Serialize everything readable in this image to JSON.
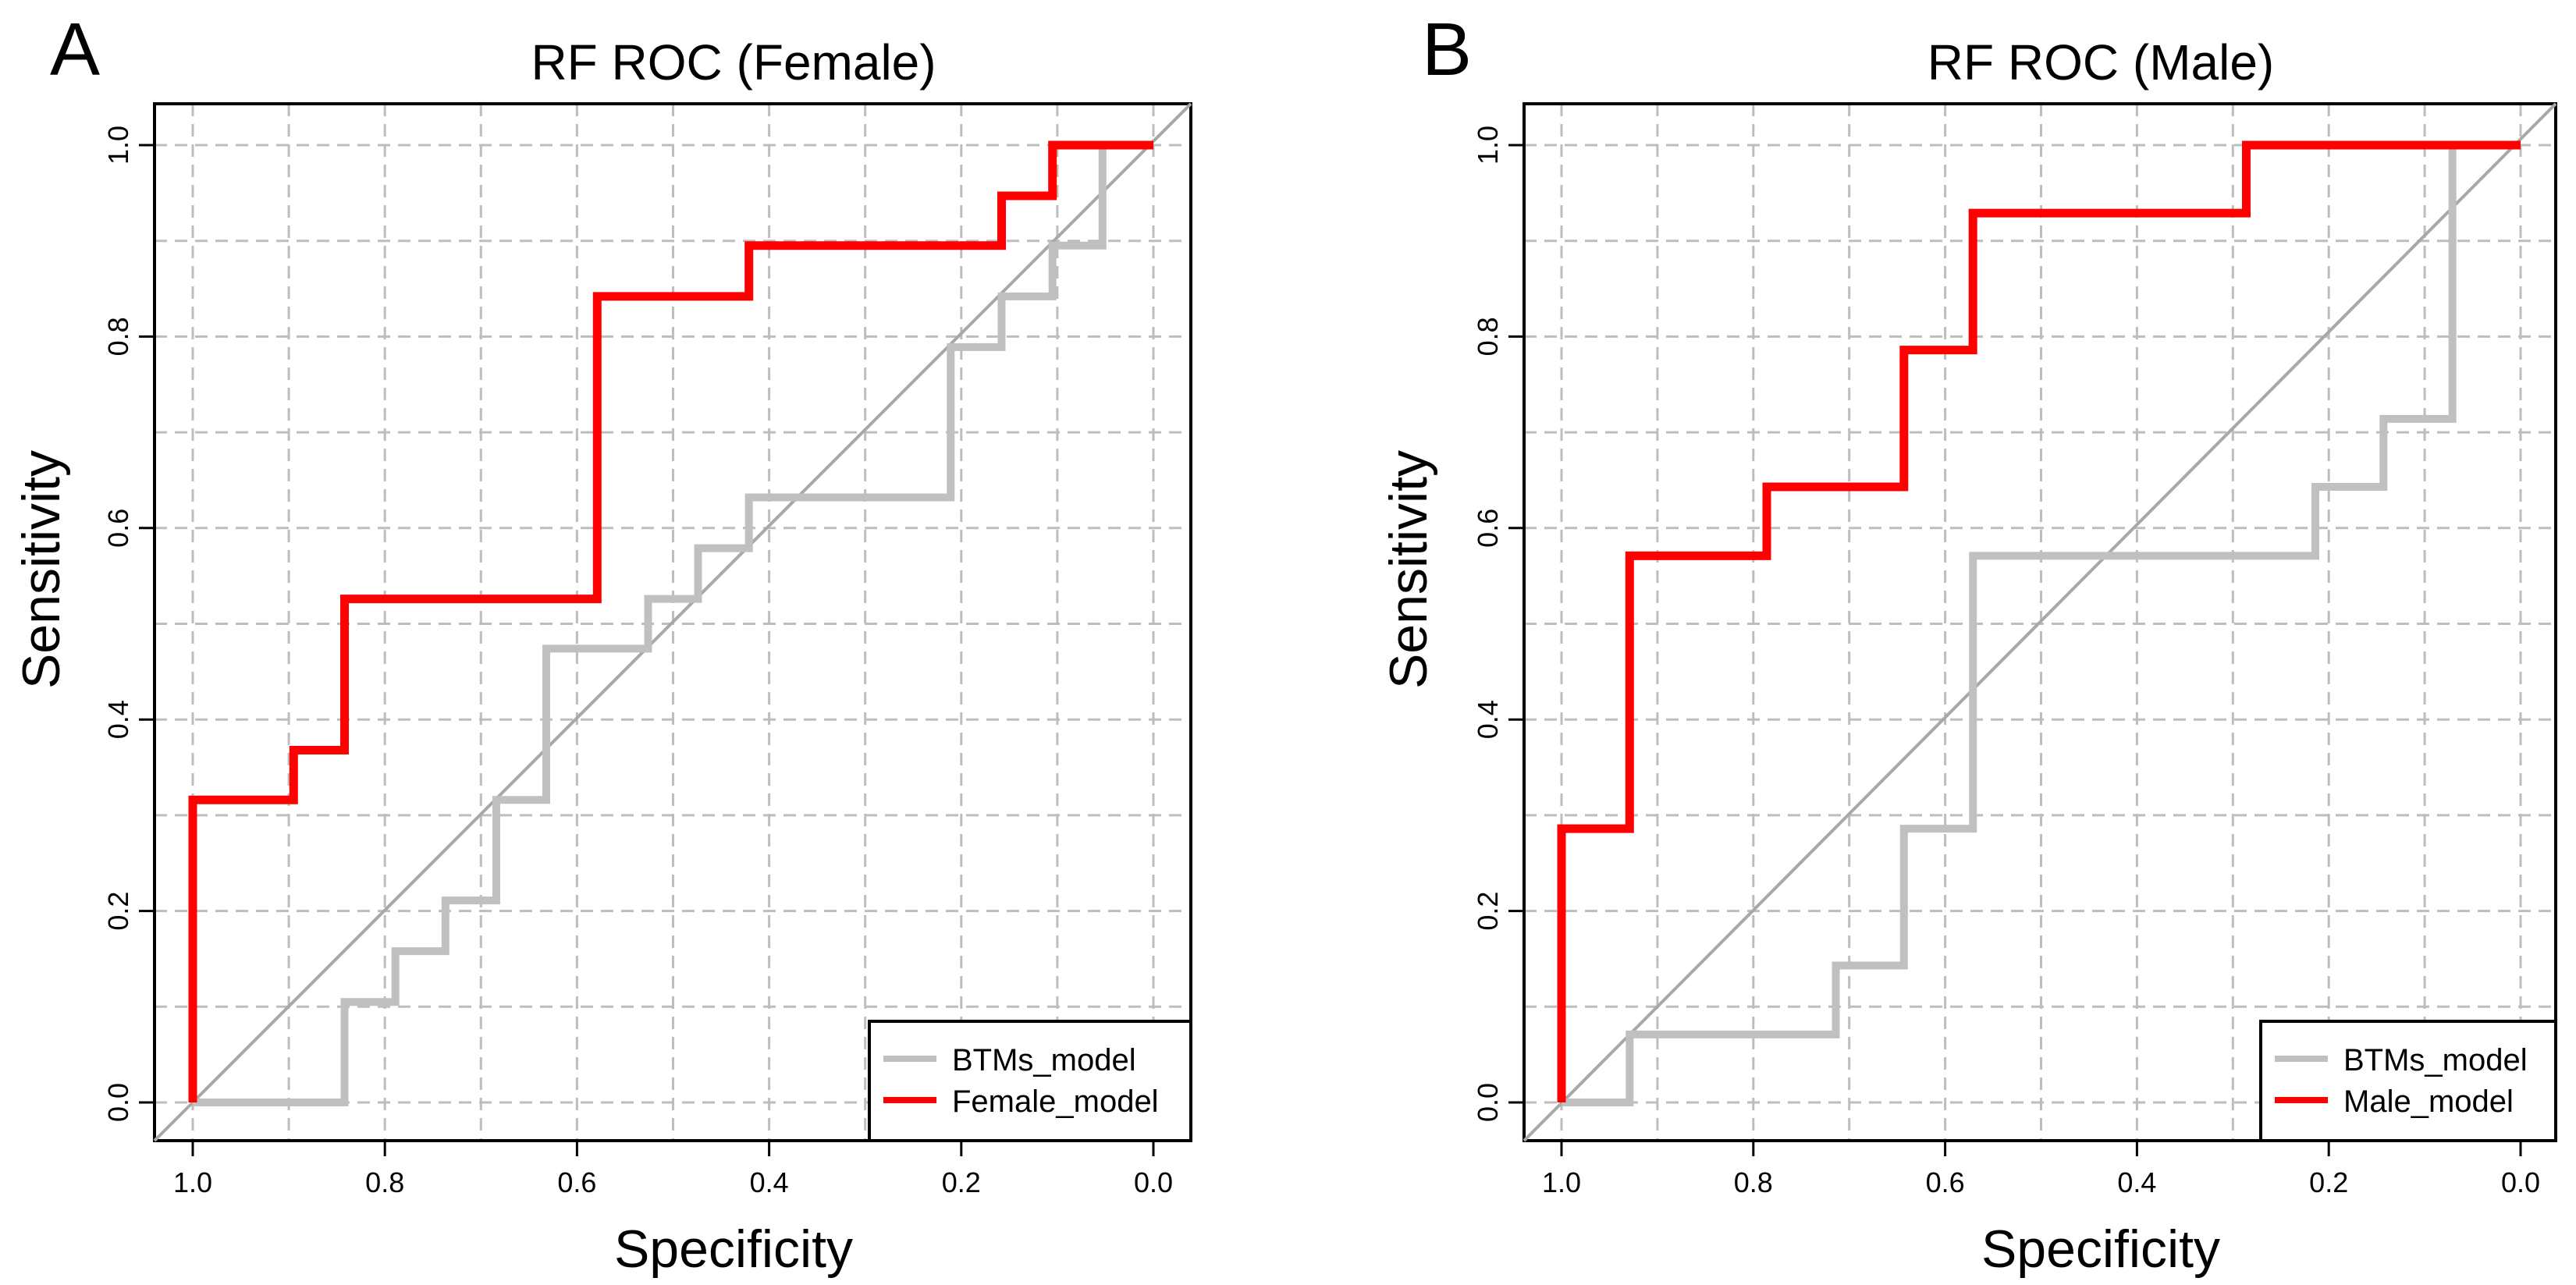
{
  "chart_data": [
    {
      "type": "line",
      "panel_label": "A",
      "title": "RF ROC (Female)",
      "xlabel": "Specificity",
      "ylabel": "Sensitivity",
      "xlim": [
        1.0,
        0.0
      ],
      "ylim": [
        0.0,
        1.0
      ],
      "x_ticks": [
        "1.0",
        "0.8",
        "0.6",
        "0.4",
        "0.2",
        "0.0"
      ],
      "y_ticks": [
        "0.0",
        "0.2",
        "0.4",
        "0.6",
        "0.8",
        "1.0"
      ],
      "grid": true,
      "legend_position": "bottom-right",
      "series": [
        {
          "name": "BTMs_model",
          "color": "#c0c0c0",
          "x": [
            1.0,
            0.842,
            0.842,
            0.789,
            0.789,
            0.737,
            0.737,
            0.684,
            0.684,
            0.632,
            0.632,
            0.526,
            0.526,
            0.474,
            0.474,
            0.421,
            0.421,
            0.211,
            0.211,
            0.158,
            0.158,
            0.105,
            0.105,
            0.053,
            0.053
          ],
          "y": [
            0.0,
            0.0,
            0.105,
            0.105,
            0.158,
            0.158,
            0.211,
            0.211,
            0.316,
            0.316,
            0.474,
            0.474,
            0.526,
            0.526,
            0.579,
            0.579,
            0.632,
            0.632,
            0.789,
            0.789,
            0.842,
            0.842,
            0.895,
            0.895,
            1.0
          ]
        },
        {
          "name": "Female_model",
          "color": "#ff0000",
          "x": [
            1.0,
            1.0,
            0.895,
            0.895,
            0.842,
            0.842,
            0.579,
            0.579,
            0.421,
            0.421,
            0.158,
            0.158,
            0.105,
            0.105,
            0.0
          ],
          "y": [
            0.0,
            0.316,
            0.316,
            0.368,
            0.368,
            0.526,
            0.526,
            0.842,
            0.842,
            0.895,
            0.895,
            0.947,
            0.947,
            1.0,
            1.0
          ]
        }
      ]
    },
    {
      "type": "line",
      "panel_label": "B",
      "title": "RF ROC (Male)",
      "xlabel": "Specificity",
      "ylabel": "Sensitivity",
      "xlim": [
        1.0,
        0.0
      ],
      "ylim": [
        0.0,
        1.0
      ],
      "x_ticks": [
        "1.0",
        "0.8",
        "0.6",
        "0.4",
        "0.2",
        "0.0"
      ],
      "y_ticks": [
        "0.0",
        "0.2",
        "0.4",
        "0.6",
        "0.8",
        "1.0"
      ],
      "grid": true,
      "legend_position": "bottom-right",
      "series": [
        {
          "name": "BTMs_model",
          "color": "#c0c0c0",
          "x": [
            1.0,
            0.929,
            0.929,
            0.714,
            0.714,
            0.643,
            0.643,
            0.571,
            0.571,
            0.214,
            0.214,
            0.143,
            0.143,
            0.071,
            0.071
          ],
          "y": [
            0.0,
            0.0,
            0.071,
            0.071,
            0.143,
            0.143,
            0.286,
            0.286,
            0.571,
            0.571,
            0.643,
            0.643,
            0.714,
            0.714,
            1.0
          ]
        },
        {
          "name": "Male_model",
          "color": "#ff0000",
          "x": [
            1.0,
            1.0,
            0.929,
            0.929,
            0.786,
            0.786,
            0.643,
            0.643,
            0.571,
            0.571,
            0.286,
            0.286,
            0.0
          ],
          "y": [
            0.0,
            0.286,
            0.286,
            0.571,
            0.571,
            0.643,
            0.643,
            0.786,
            0.786,
            0.929,
            0.929,
            1.0,
            1.0
          ]
        }
      ]
    }
  ]
}
